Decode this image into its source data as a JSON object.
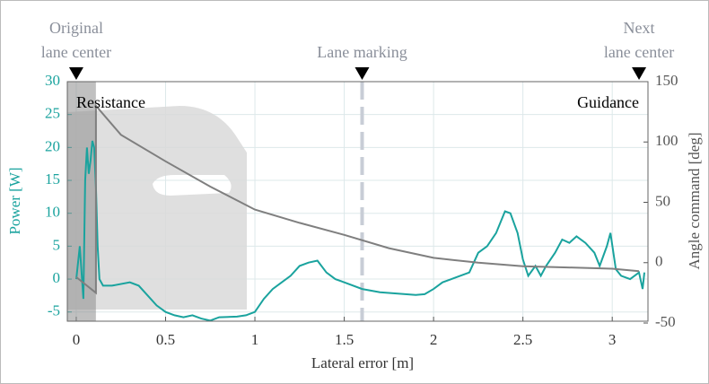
{
  "chart_data": {
    "type": "line",
    "xlabel": "Lateral error [m]",
    "ylabel": "Power [W]",
    "y2label": "Angle command [deg]",
    "xlim": [
      -0.05,
      3.2
    ],
    "ylim": [
      -6.4,
      30
    ],
    "y2lim": [
      -48.5,
      150
    ],
    "xticks": [
      0,
      0.5,
      1,
      1.5,
      2,
      2.5,
      3
    ],
    "yticks": [
      -5,
      0,
      5,
      10,
      15,
      20,
      25,
      30
    ],
    "y2ticks": [
      -50,
      0,
      50,
      100,
      150
    ],
    "grid": true,
    "highlight_x": [
      -0.05,
      0.11
    ],
    "annotations": [
      {
        "text": "Resistance",
        "x": 0.0,
        "y": 26.6
      },
      {
        "text": "Guidance",
        "x": 3.15,
        "y": 26.6
      }
    ],
    "markers": [
      {
        "lines": [
          "Original",
          "lane center"
        ],
        "x": 0
      },
      {
        "lines": [
          "Lane marking"
        ],
        "x": 1.6
      },
      {
        "lines": [
          "Next",
          "lane center"
        ],
        "x": 3.15
      }
    ],
    "series": [
      {
        "color": "#1aa39e",
        "axis": "y",
        "x": [
          0,
          0.02,
          0.04,
          0.05,
          0.06,
          0.07,
          0.08,
          0.09,
          0.1,
          0.11,
          0.12,
          0.13,
          0.15,
          0.2,
          0.3,
          0.35,
          0.4,
          0.45,
          0.5,
          0.55,
          0.6,
          0.65,
          0.7,
          0.75,
          0.8,
          0.9,
          0.95,
          1.0,
          1.05,
          1.1,
          1.15,
          1.2,
          1.25,
          1.3,
          1.35,
          1.4,
          1.45,
          1.5,
          1.6,
          1.7,
          1.8,
          1.9,
          1.95,
          2.0,
          2.05,
          2.1,
          2.2,
          2.25,
          2.3,
          2.35,
          2.4,
          2.43,
          2.47,
          2.5,
          2.53,
          2.57,
          2.6,
          2.63,
          2.68,
          2.72,
          2.76,
          2.8,
          2.85,
          2.9,
          2.93,
          2.97,
          2.99,
          3.02,
          3.05,
          3.1,
          3.15,
          3.17,
          3.18
        ],
        "values": [
          0,
          5,
          -3,
          15,
          20,
          16,
          18,
          21,
          20,
          14,
          5,
          0,
          -1,
          -1,
          -0.5,
          -1,
          -2.5,
          -4,
          -5,
          -5.5,
          -5.8,
          -5.5,
          -6,
          -6.3,
          -5.8,
          -5.7,
          -5.5,
          -5,
          -3,
          -1.5,
          -0.5,
          0.5,
          2,
          2.5,
          2.8,
          1,
          0,
          -0.5,
          -1.5,
          -2,
          -2.2,
          -2.4,
          -2.3,
          -1.5,
          -0.5,
          0,
          1,
          4,
          5,
          7,
          10.3,
          10,
          7,
          3,
          0.5,
          2,
          0.5,
          2,
          4,
          6,
          5.5,
          6.5,
          5.5,
          4,
          2,
          5,
          7,
          1.5,
          0.5,
          0,
          1,
          -1.5,
          1
        ]
      },
      {
        "color": "#7f7f7f",
        "axis": "y2",
        "x": [
          0,
          0.11,
          0.11,
          0.25,
          0.5,
          0.75,
          1,
          1.25,
          1.5,
          1.75,
          2,
          2.25,
          2.5,
          2.75,
          3,
          3.15
        ],
        "values": [
          -12,
          -25,
          130,
          106,
          84,
          63,
          44,
          33,
          23,
          12,
          4,
          0,
          -3,
          -4,
          -5,
          -7
        ]
      }
    ]
  }
}
